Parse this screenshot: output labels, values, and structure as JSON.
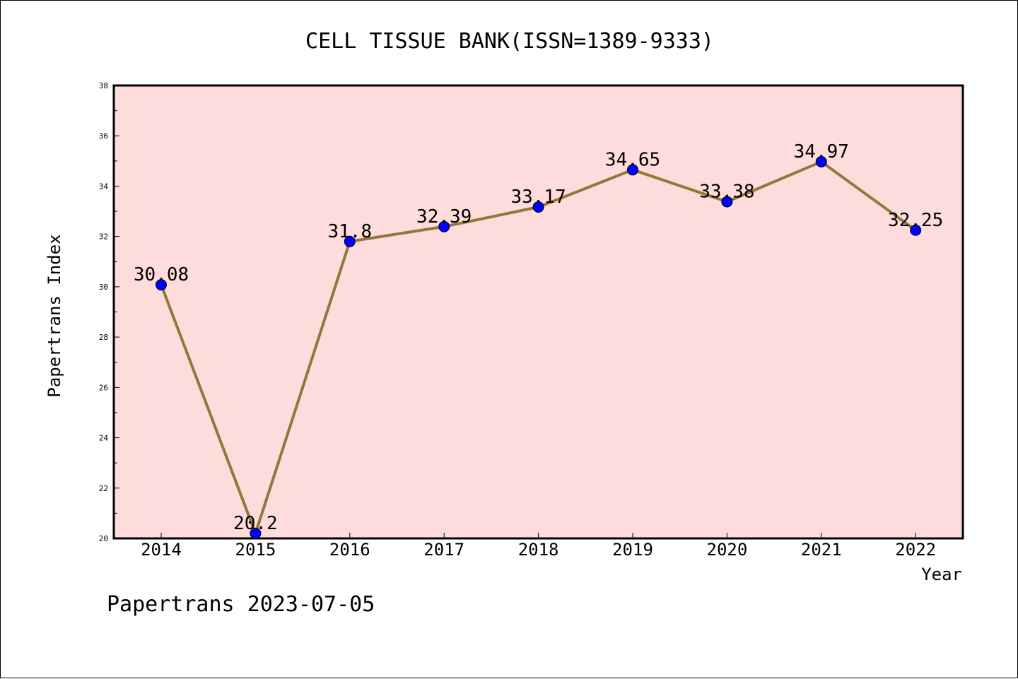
{
  "chart_data": {
    "type": "line",
    "title": "CELL TISSUE BANK(ISSN=1389-9333)",
    "xlabel": "Year",
    "ylabel": "Papertrans Index",
    "categories": [
      "2014",
      "2015",
      "2016",
      "2017",
      "2018",
      "2019",
      "2020",
      "2021",
      "2022"
    ],
    "values": [
      30.08,
      20.2,
      31.8,
      32.39,
      33.17,
      34.65,
      33.38,
      34.97,
      32.25
    ],
    "data_labels": [
      "30.08",
      "20.2",
      "31.8",
      "32.39",
      "33.17",
      "34.65",
      "33.38",
      "34.97",
      "32.25"
    ],
    "ylim": [
      20,
      38
    ],
    "yticks": [
      20,
      22,
      24,
      26,
      28,
      30,
      32,
      34,
      36,
      38
    ],
    "ytick_labels": [
      "20",
      "22",
      "24",
      "26",
      "28",
      "30",
      "32",
      "34",
      "36",
      "38"
    ],
    "grid": false,
    "colors": {
      "plot_background": "#ffdcdc",
      "line": "#8f7a3a",
      "marker": "#0000ff",
      "marker_edge": "#000000"
    },
    "footer": "Papertrans 2023-07-05"
  }
}
